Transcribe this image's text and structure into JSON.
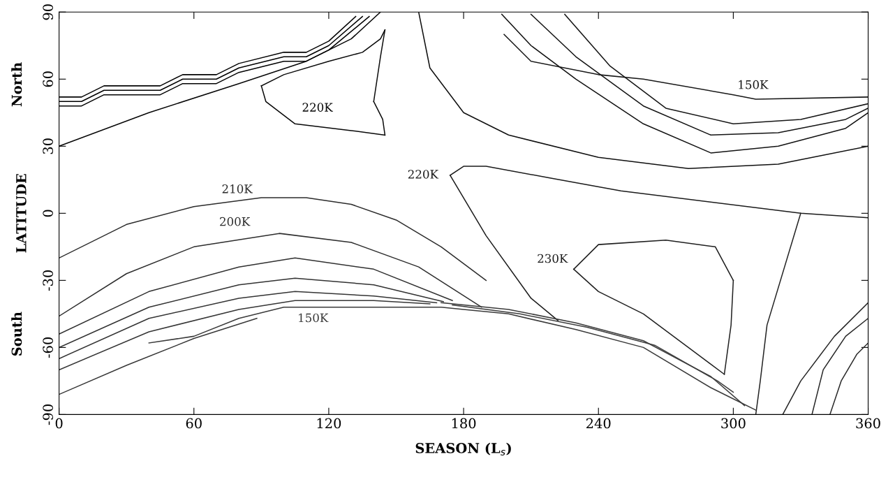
{
  "chart_data": {
    "type": "line",
    "xlabel": "SEASON (L$_{s}$)",
    "ylabel": "LATITUDE",
    "xlim": [
      0,
      360
    ],
    "ylim": [
      -90,
      90
    ],
    "xticks": [
      0,
      60,
      120,
      180,
      240,
      300,
      360
    ],
    "yticks": [
      -90,
      -60,
      -30,
      0,
      30,
      60,
      90
    ],
    "grid": false,
    "legend": false,
    "marker": "none",
    "line_style": "solid",
    "annotations": [
      "North",
      "South"
    ],
    "series": [
      {
        "color": "#000000",
        "x": [
          0,
          10,
          20,
          45,
          55,
          70,
          80,
          100,
          110,
          120,
          135
        ],
        "values": [
          50,
          50,
          55,
          55,
          60,
          60,
          65,
          70,
          70,
          75,
          88
        ]
      },
      {
        "color": "#020202",
        "x": [
          0,
          10,
          20,
          45,
          55,
          70,
          80,
          100,
          110,
          120,
          138
        ],
        "values": [
          48,
          48,
          53,
          53,
          58,
          58,
          63,
          68,
          68,
          73,
          88
        ]
      },
      {
        "color": "#040404",
        "x": [
          0,
          10,
          20,
          45,
          55,
          70,
          80,
          100,
          110,
          120,
          132
        ],
        "values": [
          52,
          52,
          57,
          57,
          62,
          62,
          67,
          72,
          72,
          77,
          88
        ]
      },
      {
        "color": "#060606",
        "x": [
          0,
          40,
          80,
          110,
          130,
          143
        ],
        "values": [
          30,
          45,
          58,
          68,
          78,
          90
        ]
      },
      {
        "name": "220K",
        "color": "#080808",
        "x": [
          90,
          92,
          105,
          130,
          145
        ],
        "values": [
          57,
          50,
          40,
          37,
          35
        ]
      },
      {
        "color": "#0a0a0a",
        "x": [
          90,
          100,
          120,
          135,
          143,
          145
        ],
        "values": [
          57,
          62,
          68,
          72,
          78,
          82
        ]
      },
      {
        "color": "#0c0c0c",
        "x": [
          140,
          144,
          145
        ],
        "values": [
          50,
          42,
          35
        ]
      },
      {
        "color": "#0e0e0e",
        "x": [
          140,
          143,
          145
        ],
        "values": [
          50,
          70,
          82
        ]
      },
      {
        "color": "#101010",
        "x": [
          160,
          165,
          180,
          200,
          240,
          280,
          320,
          360
        ],
        "values": [
          90,
          65,
          45,
          35,
          25,
          20,
          22,
          30
        ]
      },
      {
        "color": "#121212",
        "x": [
          197,
          210,
          230,
          260,
          290,
          320,
          350,
          360
        ],
        "values": [
          89,
          75,
          60,
          40,
          27,
          30,
          38,
          45
        ]
      },
      {
        "color": "#141414",
        "x": [
          210,
          230,
          260,
          290,
          320,
          350,
          360
        ],
        "values": [
          89,
          70,
          48,
          35,
          36,
          42,
          47
        ]
      },
      {
        "color": "#161616",
        "x": [
          225,
          245,
          270,
          300,
          330,
          360
        ],
        "values": [
          89,
          66,
          47,
          40,
          42,
          49
        ]
      },
      {
        "name": "150K",
        "color": "#181818",
        "x": [
          198,
          210,
          240,
          260,
          300,
          310,
          360
        ],
        "values": [
          80,
          68,
          62,
          60,
          53,
          51,
          52
        ]
      },
      {
        "name": "220K",
        "color": "#1a1a1a",
        "x": [
          174,
          180,
          190,
          250,
          330,
          360
        ],
        "values": [
          17,
          21,
          21,
          10,
          0,
          -2
        ]
      },
      {
        "color": "#1c1c1c",
        "x": [
          174,
          190,
          210,
          222
        ],
        "values": [
          17,
          -10,
          -38,
          -48
        ]
      },
      {
        "name": "230K",
        "color": "#1e1e1e",
        "x": [
          229,
          240,
          270,
          292,
          300
        ],
        "values": [
          -25,
          -14,
          -12,
          -15,
          -30
        ]
      },
      {
        "color": "#202020",
        "x": [
          229,
          240,
          260,
          280,
          296
        ],
        "values": [
          -25,
          -35,
          -45,
          -60,
          -72
        ]
      },
      {
        "color": "#222222",
        "x": [
          296,
          299,
          300
        ],
        "values": [
          -72,
          -50,
          -30
        ]
      },
      {
        "color": "#242424",
        "x": [
          310,
          312,
          315,
          330
        ],
        "values": [
          -90,
          -75,
          -50,
          0
        ]
      },
      {
        "color": "#262626",
        "x": [
          322,
          330,
          345,
          360
        ],
        "values": [
          -90,
          -75,
          -55,
          -40
        ]
      },
      {
        "color": "#282828",
        "x": [
          335,
          340,
          350,
          360
        ],
        "values": [
          -90,
          -70,
          -55,
          -47
        ]
      },
      {
        "color": "#2a2a2a",
        "x": [
          343,
          348,
          355,
          360
        ],
        "values": [
          -90,
          -75,
          -63,
          -58
        ]
      },
      {
        "name": "210K",
        "color": "#2c2c2c",
        "x": [
          0,
          30,
          60,
          90,
          110,
          130,
          150,
          170,
          190
        ],
        "values": [
          -20,
          -5,
          3,
          7,
          7,
          4,
          -3,
          -15,
          -30
        ]
      },
      {
        "name": "200K",
        "color": "#2e2e2e",
        "x": [
          0,
          30,
          60,
          98,
          130,
          160,
          188
        ],
        "values": [
          -46,
          -27,
          -15,
          -9,
          -13,
          -24,
          -42
        ]
      },
      {
        "color": "#303030",
        "x": [
          0,
          40,
          80,
          105,
          140,
          175
        ],
        "values": [
          -54,
          -35,
          -24,
          -20,
          -25,
          -39
        ]
      },
      {
        "color": "#323232",
        "x": [
          0,
          40,
          80,
          105,
          140,
          171
        ],
        "values": [
          -60,
          -42,
          -32,
          -29,
          -32,
          -39.5
        ]
      },
      {
        "color": "#343434",
        "x": [
          0,
          40,
          80,
          105,
          140,
          168
        ],
        "values": [
          -65,
          -47,
          -38,
          -35,
          -37,
          -40
        ]
      },
      {
        "color": "#363636",
        "x": [
          0,
          40,
          80,
          105,
          140,
          165
        ],
        "values": [
          -70,
          -53,
          -43,
          -39,
          -39,
          -40.5
        ]
      },
      {
        "color": "#383838",
        "x": [
          0,
          30,
          60,
          88
        ],
        "values": [
          -81,
          -68,
          -56,
          -47
        ]
      },
      {
        "name": "150K",
        "color": "#3a3a3a",
        "x": [
          40,
          60,
          80,
          100,
          170,
          180,
          200,
          230,
          260,
          290,
          300,
          310
        ],
        "values": [
          -58,
          -55,
          -47,
          -42,
          -42,
          -43,
          -45,
          -52,
          -60,
          -78,
          -83,
          -88
        ]
      },
      {
        "color": "#3c3c3c",
        "x": [
          170,
          200,
          230,
          260,
          290,
          305
        ],
        "values": [
          -40,
          -43,
          -49,
          -57,
          -73,
          -86
        ]
      },
      {
        "color": "#3e3e3e",
        "x": [
          175,
          205,
          235,
          265,
          293,
          300
        ],
        "values": [
          -41,
          -45,
          -51,
          -59,
          -75,
          -80
        ]
      }
    ]
  }
}
